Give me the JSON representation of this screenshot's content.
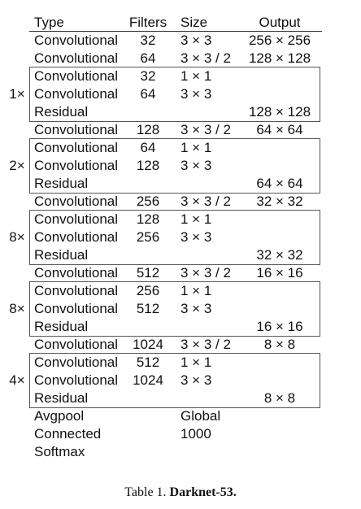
{
  "header": {
    "type": "Type",
    "filters": "Filters",
    "size": "Size",
    "output": "Output"
  },
  "rows": [
    {
      "type": "Convolutional",
      "filters": "32",
      "size": "3 × 3",
      "output": "256 × 256"
    },
    {
      "type": "Convolutional",
      "filters": "64",
      "size": "3 × 3 / 2",
      "output": "128 × 128"
    },
    {
      "type": "Convolutional",
      "filters": "32",
      "size": "1 × 1",
      "output": ""
    },
    {
      "type": "Convolutional",
      "filters": "64",
      "size": "3 × 3",
      "output": ""
    },
    {
      "type": "Residual",
      "filters": "",
      "size": "",
      "output": "128 × 128"
    },
    {
      "type": "Convolutional",
      "filters": "128",
      "size": "3 × 3 / 2",
      "output": "64 × 64"
    },
    {
      "type": "Convolutional",
      "filters": "64",
      "size": "1 × 1",
      "output": ""
    },
    {
      "type": "Convolutional",
      "filters": "128",
      "size": "3 × 3",
      "output": ""
    },
    {
      "type": "Residual",
      "filters": "",
      "size": "",
      "output": "64 × 64"
    },
    {
      "type": "Convolutional",
      "filters": "256",
      "size": "3 × 3 / 2",
      "output": "32 × 32"
    },
    {
      "type": "Convolutional",
      "filters": "128",
      "size": "1 × 1",
      "output": ""
    },
    {
      "type": "Convolutional",
      "filters": "256",
      "size": "3 × 3",
      "output": ""
    },
    {
      "type": "Residual",
      "filters": "",
      "size": "",
      "output": "32 × 32"
    },
    {
      "type": "Convolutional",
      "filters": "512",
      "size": "3 × 3 / 2",
      "output": "16 × 16"
    },
    {
      "type": "Convolutional",
      "filters": "256",
      "size": "1 × 1",
      "output": ""
    },
    {
      "type": "Convolutional",
      "filters": "512",
      "size": "3 × 3",
      "output": ""
    },
    {
      "type": "Residual",
      "filters": "",
      "size": "",
      "output": "16 × 16"
    },
    {
      "type": "Convolutional",
      "filters": "1024",
      "size": "3 × 3 / 2",
      "output": "8 × 8"
    },
    {
      "type": "Convolutional",
      "filters": "512",
      "size": "1 × 1",
      "output": ""
    },
    {
      "type": "Convolutional",
      "filters": "1024",
      "size": "3 × 3",
      "output": ""
    },
    {
      "type": "Residual",
      "filters": "",
      "size": "",
      "output": "8 × 8"
    },
    {
      "type": "Avgpool",
      "filters": "",
      "size": "Global",
      "output": ""
    },
    {
      "type": "Connected",
      "filters": "",
      "size": "1000",
      "output": ""
    },
    {
      "type": "Softmax",
      "filters": "",
      "size": "",
      "output": ""
    }
  ],
  "blocks": [
    {
      "multiplier": "1×",
      "first_row": 2,
      "last_row": 4
    },
    {
      "multiplier": "2×",
      "first_row": 6,
      "last_row": 8
    },
    {
      "multiplier": "8×",
      "first_row": 10,
      "last_row": 12
    },
    {
      "multiplier": "8×",
      "first_row": 14,
      "last_row": 16
    },
    {
      "multiplier": "4×",
      "first_row": 18,
      "last_row": 20
    }
  ],
  "caption": {
    "prefix": "Table 1. ",
    "title": "Darknet-53."
  }
}
